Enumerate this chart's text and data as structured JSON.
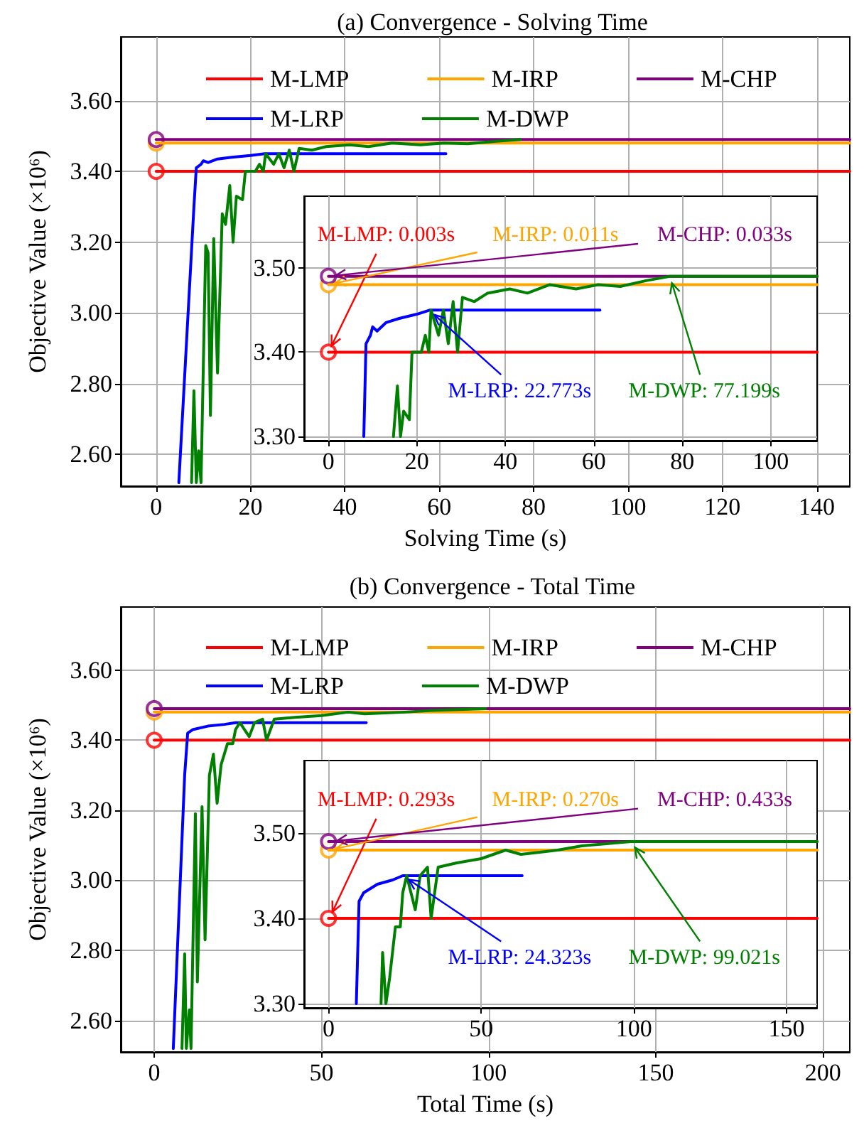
{
  "chart_data": [
    {
      "type": "line",
      "title": "(a) Convergence - Solving Time",
      "xlabel": "Solving Time (s)",
      "ylabel": "Objective Value (×10⁶)",
      "xlim": [
        -7.5,
        147
      ],
      "ylim": [
        2.51,
        3.78
      ],
      "xticks": [
        0,
        20,
        40,
        60,
        80,
        100,
        120,
        140
      ],
      "yticks": [
        {
          "value": 2.6,
          "label": "2.60"
        },
        {
          "value": 2.8,
          "label": "2.80"
        },
        {
          "value": 3.0,
          "label": "3.00"
        },
        {
          "value": 3.2,
          "label": "3.20"
        },
        {
          "value": 3.4,
          "label": "3.40"
        },
        {
          "value": 3.6,
          "label": "3.60"
        }
      ],
      "grid": true,
      "legend": "top",
      "series": [
        {
          "name": "M-LMP",
          "color": "#ff0000",
          "x": [
            0,
            147
          ],
          "values": [
            3.4,
            3.4
          ]
        },
        {
          "name": "M-IRP",
          "color": "#ffa500",
          "x": [
            0,
            147
          ],
          "values": [
            3.48,
            3.48
          ]
        },
        {
          "name": "M-CHP",
          "color": "#800080",
          "x": [
            0,
            147
          ],
          "values": [
            3.49,
            3.49
          ]
        },
        {
          "name": "M-LRP",
          "color": "#0000ff",
          "x": [
            4.8,
            8,
            8.5,
            9.5,
            10,
            11,
            13,
            16,
            20,
            23,
            61.4
          ],
          "values": [
            2.52,
            3.3,
            3.41,
            3.42,
            3.43,
            3.425,
            3.435,
            3.44,
            3.445,
            3.45,
            3.45
          ]
        },
        {
          "name": "M-DWP",
          "color": "#008000",
          "x": [
            7.5,
            8,
            8.5,
            9,
            9.5,
            10.5,
            11,
            11.5,
            12.2,
            13,
            14,
            14.7,
            15.6,
            16.3,
            17,
            18.3,
            18.9,
            21,
            21.9,
            22.7,
            23.2,
            24.9,
            26,
            27.1,
            28.2,
            29.2,
            30.3,
            33,
            36,
            41,
            45,
            50,
            56,
            61,
            66,
            72,
            77.2
          ],
          "values": [
            2.52,
            2.78,
            2.52,
            2.61,
            2.52,
            3.19,
            3.17,
            2.71,
            3.21,
            2.83,
            3.28,
            3.25,
            3.36,
            3.2,
            3.33,
            3.32,
            3.4,
            3.4,
            3.42,
            3.4,
            3.45,
            3.42,
            3.45,
            3.41,
            3.46,
            3.4,
            3.465,
            3.46,
            3.47,
            3.475,
            3.47,
            3.48,
            3.475,
            3.48,
            3.478,
            3.485,
            3.49
          ]
        },
        {
          "type": "scatter",
          "marker": "circle",
          "color": "#ff0000",
          "x": [
            0
          ],
          "values": [
            3.4
          ]
        },
        {
          "type": "scatter",
          "marker": "circle",
          "color": "#ffa500",
          "x": [
            0
          ],
          "values": [
            3.48
          ]
        },
        {
          "type": "scatter",
          "marker": "circle",
          "color": "#800080",
          "x": [
            0
          ],
          "values": [
            3.49
          ]
        }
      ]
    },
    {
      "type": "line",
      "xlim": [
        -5.5,
        110.5
      ],
      "ylim": [
        3.295,
        3.585
      ],
      "xticks": [
        0,
        20,
        40,
        60,
        80,
        100
      ],
      "yticks": [
        {
          "value": 3.3,
          "label": "3.30"
        },
        {
          "value": 3.4,
          "label": "3.40"
        },
        {
          "value": 3.5,
          "label": "3.50"
        }
      ],
      "grid": true,
      "annotations": [
        {
          "text": "M-LMP: 0.003s",
          "x": 0.003,
          "y": 3.4
        },
        {
          "text": "M-IRP: 0.011s",
          "x": 0.011,
          "y": 3.48
        },
        {
          "text": "M-CHP: 0.033s",
          "x": 0.033,
          "y": 3.49
        },
        {
          "text": "M-LRP: 22.773s",
          "x": 22.773,
          "y": 3.45
        },
        {
          "text": "M-DWP: 77.199s",
          "x": 77.199,
          "y": 3.49
        }
      ],
      "series": [
        {
          "color": "#ff0000",
          "x": [
            0,
            110.5
          ],
          "values": [
            3.4,
            3.4
          ]
        },
        {
          "color": "#ffa500",
          "x": [
            0,
            110.5
          ],
          "values": [
            3.48,
            3.48
          ]
        },
        {
          "color": "#800080",
          "x": [
            0,
            110.5
          ],
          "values": [
            3.49,
            3.49
          ]
        },
        {
          "color": "#0000ff",
          "x": [
            8,
            8.5,
            9.5,
            10,
            11,
            13,
            16,
            20,
            23,
            61.4
          ],
          "values": [
            3.3,
            3.41,
            3.42,
            3.43,
            3.425,
            3.435,
            3.44,
            3.445,
            3.45,
            3.45
          ]
        },
        {
          "color": "#008000",
          "x": [
            14.7,
            15.6,
            16.3,
            17,
            18.3,
            18.9,
            21,
            21.9,
            22.7,
            23.2,
            24.9,
            26,
            27.1,
            28.2,
            29.2,
            30.3,
            33,
            36,
            41,
            45,
            50,
            56,
            61,
            66,
            72,
            77.2,
            110.5
          ],
          "values": [
            3.3,
            3.36,
            3.3,
            3.33,
            3.32,
            3.4,
            3.4,
            3.42,
            3.4,
            3.45,
            3.42,
            3.45,
            3.41,
            3.46,
            3.4,
            3.465,
            3.46,
            3.47,
            3.475,
            3.47,
            3.48,
            3.475,
            3.48,
            3.478,
            3.485,
            3.49,
            3.49
          ]
        },
        {
          "type": "scatter",
          "marker": "circle",
          "color": "#ff0000",
          "x": [
            0
          ],
          "values": [
            3.4
          ]
        },
        {
          "type": "scatter",
          "marker": "circle",
          "color": "#ffa500",
          "x": [
            0
          ],
          "values": [
            3.48
          ]
        },
        {
          "type": "scatter",
          "marker": "circle",
          "color": "#800080",
          "x": [
            0
          ],
          "values": [
            3.49
          ]
        }
      ]
    },
    {
      "type": "line",
      "title": "(b) Convergence - Total Time",
      "xlabel": "Total Time (s)",
      "ylabel": "Objective Value (×10⁶)",
      "xlim": [
        -10,
        208
      ],
      "ylim": [
        2.51,
        3.78
      ],
      "xticks": [
        0,
        50,
        100,
        150,
        200
      ],
      "yticks": [
        {
          "value": 2.6,
          "label": "2.60"
        },
        {
          "value": 2.8,
          "label": "2.80"
        },
        {
          "value": 3.0,
          "label": "3.00"
        },
        {
          "value": 3.2,
          "label": "3.20"
        },
        {
          "value": 3.4,
          "label": "3.40"
        },
        {
          "value": 3.6,
          "label": "3.60"
        }
      ],
      "grid": true,
      "legend": "top",
      "series": [
        {
          "name": "M-LMP",
          "color": "#ff0000",
          "x": [
            0,
            208
          ],
          "values": [
            3.4,
            3.4
          ]
        },
        {
          "name": "M-IRP",
          "color": "#ffa500",
          "x": [
            0,
            208
          ],
          "values": [
            3.48,
            3.48
          ]
        },
        {
          "name": "M-CHP",
          "color": "#800080",
          "x": [
            0,
            208
          ],
          "values": [
            3.49,
            3.49
          ]
        },
        {
          "name": "M-LRP",
          "color": "#0000ff",
          "x": [
            5.7,
            9.1,
            10,
            11.5,
            16,
            21,
            24.3,
            63.4
          ],
          "values": [
            2.52,
            3.3,
            3.42,
            3.43,
            3.44,
            3.445,
            3.45,
            3.45
          ]
        },
        {
          "name": "M-DWP",
          "color": "#008000",
          "x": [
            8.3,
            9.1,
            9.6,
            10.5,
            11,
            12.3,
            12.9,
            14.3,
            15.2,
            16.5,
            17.7,
            18.8,
            20,
            21.9,
            23.5,
            24.3,
            25.6,
            28.4,
            30,
            32.4,
            33.6,
            35.9,
            42,
            50,
            58,
            63,
            75,
            83,
            99
          ],
          "values": [
            2.52,
            2.79,
            2.52,
            2.63,
            2.52,
            3.19,
            2.71,
            3.21,
            2.83,
            3.3,
            3.36,
            3.22,
            3.33,
            3.39,
            3.39,
            3.43,
            3.45,
            3.41,
            3.45,
            3.46,
            3.4,
            3.46,
            3.465,
            3.47,
            3.48,
            3.475,
            3.48,
            3.485,
            3.49
          ]
        },
        {
          "type": "scatter",
          "marker": "circle",
          "color": "#ff0000",
          "x": [
            0
          ],
          "values": [
            3.4
          ]
        },
        {
          "type": "scatter",
          "marker": "circle",
          "color": "#ffa500",
          "x": [
            0
          ],
          "values": [
            3.48
          ]
        },
        {
          "type": "scatter",
          "marker": "circle",
          "color": "#800080",
          "x": [
            0
          ],
          "values": [
            3.49
          ]
        }
      ]
    },
    {
      "type": "line",
      "xlim": [
        -8,
        160
      ],
      "ylim": [
        3.295,
        3.585
      ],
      "xticks": [
        0,
        50,
        100,
        150
      ],
      "yticks": [
        {
          "value": 3.3,
          "label": "3.30"
        },
        {
          "value": 3.4,
          "label": "3.40"
        },
        {
          "value": 3.5,
          "label": "3.50"
        }
      ],
      "grid": true,
      "annotations": [
        {
          "text": "M-LMP: 0.293s",
          "x": 0.293,
          "y": 3.4
        },
        {
          "text": "M-IRP: 0.270s",
          "x": 0.27,
          "y": 3.48
        },
        {
          "text": "M-CHP: 0.433s",
          "x": 0.433,
          "y": 3.49
        },
        {
          "text": "M-LRP: 24.323s",
          "x": 24.323,
          "y": 3.45
        },
        {
          "text": "M-DWP: 99.021s",
          "x": 99.021,
          "y": 3.49
        }
      ],
      "series": [
        {
          "color": "#ff0000",
          "x": [
            0,
            160
          ],
          "values": [
            3.4,
            3.4
          ]
        },
        {
          "color": "#ffa500",
          "x": [
            0,
            160
          ],
          "values": [
            3.48,
            3.48
          ]
        },
        {
          "color": "#800080",
          "x": [
            0,
            160
          ],
          "values": [
            3.49,
            3.49
          ]
        },
        {
          "color": "#0000ff",
          "x": [
            9.1,
            10,
            11.5,
            16,
            21,
            24.3,
            63.4
          ],
          "values": [
            3.3,
            3.42,
            3.43,
            3.44,
            3.445,
            3.45,
            3.45
          ]
        },
        {
          "color": "#008000",
          "x": [
            17.2,
            17.7,
            18.8,
            20,
            21.9,
            23.5,
            24.3,
            25.6,
            28.4,
            30,
            32.4,
            33.6,
            35.9,
            42,
            50,
            58,
            63,
            75,
            83,
            99,
            160
          ],
          "values": [
            3.3,
            3.36,
            3.3,
            3.33,
            3.39,
            3.39,
            3.43,
            3.45,
            3.41,
            3.45,
            3.46,
            3.4,
            3.46,
            3.465,
            3.47,
            3.48,
            3.475,
            3.48,
            3.485,
            3.49,
            3.49
          ]
        },
        {
          "type": "scatter",
          "marker": "circle",
          "color": "#ff0000",
          "x": [
            0
          ],
          "values": [
            3.4
          ]
        },
        {
          "type": "scatter",
          "marker": "circle",
          "color": "#ffa500",
          "x": [
            0
          ],
          "values": [
            3.48
          ]
        },
        {
          "type": "scatter",
          "marker": "circle",
          "color": "#800080",
          "x": [
            0
          ],
          "values": [
            3.49
          ]
        }
      ]
    }
  ]
}
